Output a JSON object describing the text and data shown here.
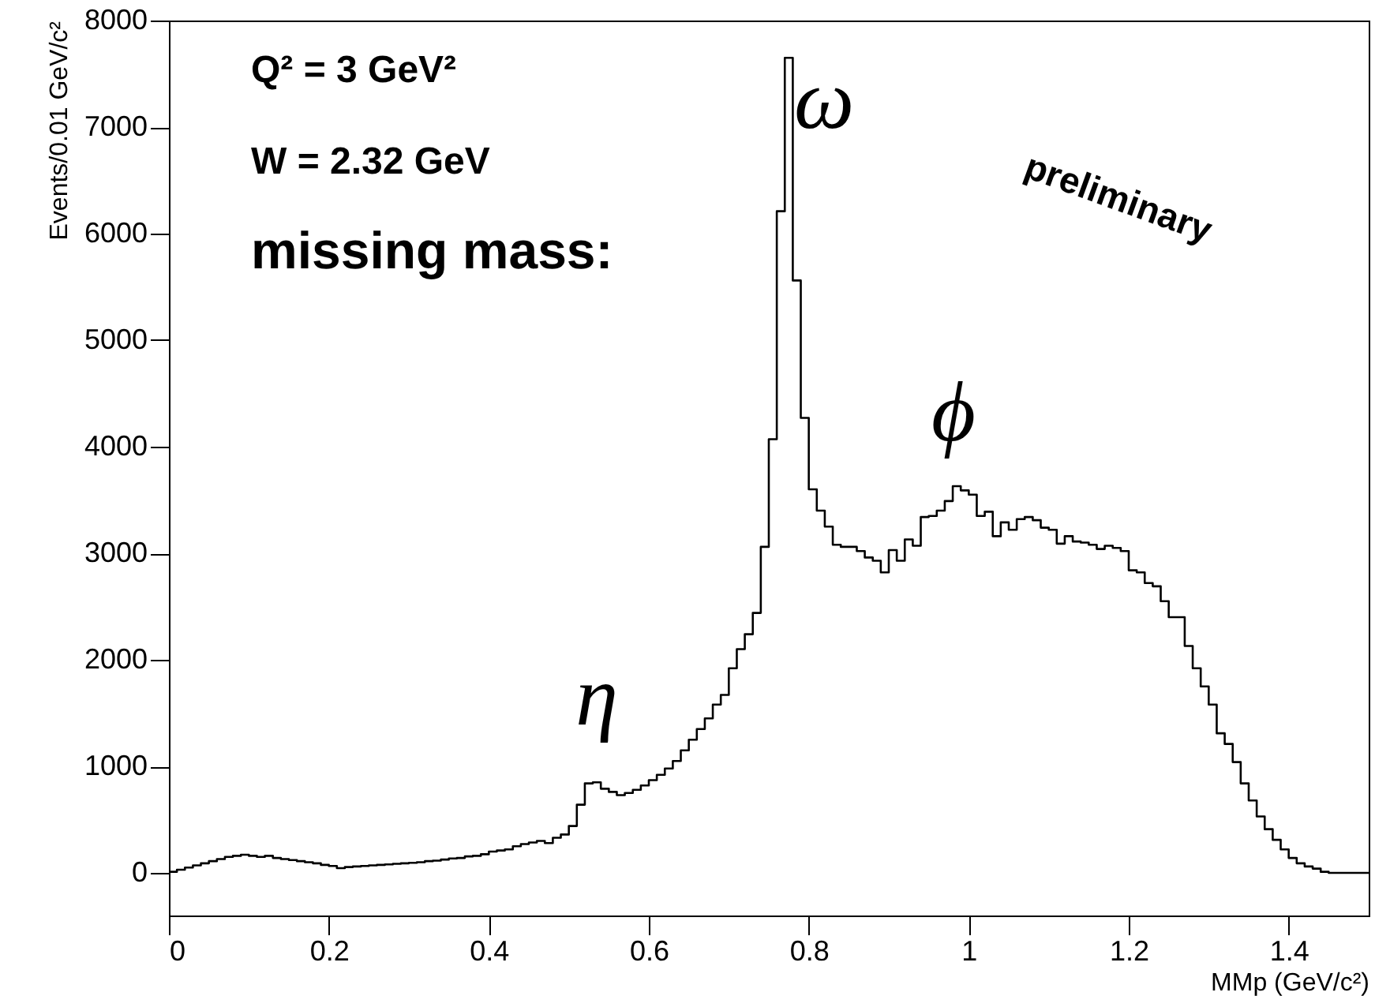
{
  "chart_data": {
    "type": "histogram",
    "xlabel": "MMp (GeV/c²)",
    "ylabel": "Events/0.01 GeV/c²",
    "color": "#000000",
    "grid": false,
    "xlim": [
      0,
      1.5
    ],
    "ylim": [
      -400,
      8000
    ],
    "xticks": [
      0,
      0.2,
      0.4,
      0.6,
      0.8,
      1,
      1.2,
      1.4
    ],
    "yticks": [
      0,
      1000,
      2000,
      3000,
      4000,
      5000,
      6000,
      7000,
      8000
    ],
    "bins": [
      0,
      0.01,
      0.02,
      0.03,
      0.04,
      0.05,
      0.06,
      0.07,
      0.08,
      0.09,
      0.1,
      0.11,
      0.12,
      0.13,
      0.14,
      0.15,
      0.16,
      0.17,
      0.18,
      0.19,
      0.2,
      0.21,
      0.22,
      0.23,
      0.24,
      0.25,
      0.26,
      0.27,
      0.28,
      0.29,
      0.3,
      0.31,
      0.32,
      0.33,
      0.34,
      0.35,
      0.36,
      0.37,
      0.38,
      0.39,
      0.4,
      0.41,
      0.42,
      0.43,
      0.44,
      0.45,
      0.46,
      0.47,
      0.48,
      0.49,
      0.5,
      0.51,
      0.52,
      0.53,
      0.54,
      0.55,
      0.56,
      0.57,
      0.58,
      0.59,
      0.6,
      0.61,
      0.62,
      0.63,
      0.64,
      0.65,
      0.66,
      0.67,
      0.68,
      0.69,
      0.7,
      0.71,
      0.72,
      0.73,
      0.74,
      0.75,
      0.76,
      0.77,
      0.78,
      0.79,
      0.8,
      0.81,
      0.82,
      0.83,
      0.84,
      0.85,
      0.86,
      0.87,
      0.88,
      0.89,
      0.9,
      0.91,
      0.92,
      0.93,
      0.94,
      0.95,
      0.96,
      0.97,
      0.98,
      0.99,
      1,
      1.01,
      1.02,
      1.03,
      1.04,
      1.05,
      1.06,
      1.07,
      1.08,
      1.09,
      1.1,
      1.11,
      1.12,
      1.13,
      1.14,
      1.15,
      1.16,
      1.17,
      1.18,
      1.19,
      1.2,
      1.21,
      1.22,
      1.23,
      1.24,
      1.25,
      1.26,
      1.27,
      1.28,
      1.29,
      1.3,
      1.31,
      1.32,
      1.33,
      1.34,
      1.35,
      1.36,
      1.37,
      1.38,
      1.39,
      1.4,
      1.41,
      1.42,
      1.43,
      1.44,
      1.45,
      1.46,
      1.47,
      1.48,
      1.49,
      1.5
    ],
    "values": [
      10,
      30,
      50,
      70,
      90,
      110,
      130,
      150,
      160,
      170,
      160,
      150,
      160,
      140,
      130,
      120,
      110,
      100,
      90,
      75,
      65,
      45,
      55,
      60,
      65,
      70,
      75,
      80,
      85,
      90,
      95,
      100,
      110,
      115,
      125,
      135,
      140,
      155,
      160,
      175,
      200,
      210,
      220,
      250,
      270,
      285,
      300,
      280,
      330,
      360,
      440,
      640,
      840,
      850,
      790,
      760,
      730,
      750,
      780,
      820,
      870,
      920,
      980,
      1050,
      1150,
      1250,
      1350,
      1450,
      1580,
      1670,
      1920,
      2100,
      2240,
      2440,
      3060,
      4070,
      6210,
      7650,
      5560,
      4270,
      3600,
      3400,
      3250,
      3080,
      3060,
      3060,
      3020,
      2960,
      2930,
      2820,
      3030,
      2930,
      3130,
      3070,
      3340,
      3350,
      3400,
      3490,
      3630,
      3590,
      3550,
      3350,
      3390,
      3160,
      3290,
      3220,
      3320,
      3340,
      3310,
      3240,
      3220,
      3090,
      3160,
      3110,
      3100,
      3080,
      3040,
      3070,
      3050,
      3020,
      2840,
      2820,
      2720,
      2690,
      2550,
      2400,
      2400,
      2130,
      1920,
      1750,
      1580,
      1310,
      1210,
      1040,
      840,
      680,
      530,
      410,
      310,
      220,
      140,
      90,
      60,
      40,
      10,
      0,
      0,
      0,
      0,
      0
    ],
    "annotations": [
      "Q² = 3 GeV²",
      "W = 2.32 GeV",
      "missing mass:",
      "preliminary",
      "η",
      "ω",
      "ϕ"
    ]
  }
}
